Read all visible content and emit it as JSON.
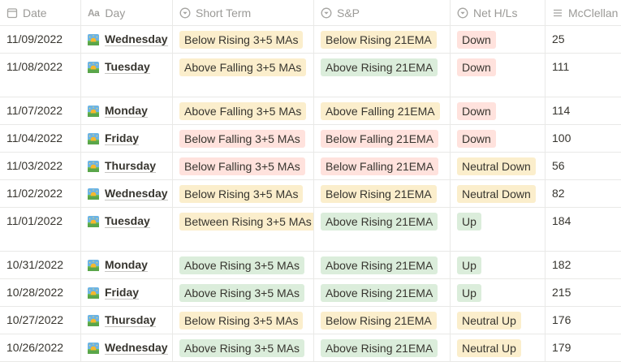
{
  "colors": {
    "yellow_bg": "#fbeecc",
    "green_bg": "#dbeddb",
    "red_bg": "#ffe2dd",
    "tag_text": "#37352f"
  },
  "header": {
    "date": {
      "label": "Date",
      "icon": "calendar-icon"
    },
    "day": {
      "label": "Day",
      "icon": "text-type-icon",
      "icon_text": "Aa"
    },
    "short": {
      "label": "Short Term",
      "icon": "select-icon"
    },
    "sp": {
      "label": "S&P",
      "icon": "select-icon"
    },
    "net": {
      "label": "Net H/Ls",
      "icon": "select-icon"
    },
    "mc": {
      "label": "McClellan",
      "icon": "number-list-icon"
    }
  },
  "rows": [
    {
      "date": "11/09/2022",
      "day": "Wednesday",
      "short": "Below Rising 3+5 MAs",
      "short_color": "yellow",
      "sp": "Below Rising 21EMA",
      "sp_color": "yellow",
      "net": "Down",
      "net_color": "red",
      "mc": "25",
      "tall": false
    },
    {
      "date": "11/08/2022",
      "day": "Tuesday",
      "short": "Above Falling 3+5 MAs",
      "short_color": "yellow",
      "sp": "Above Rising 21EMA",
      "sp_color": "green",
      "net": "Down",
      "net_color": "red",
      "mc": "111",
      "tall": true
    },
    {
      "date": "11/07/2022",
      "day": "Monday",
      "short": "Above Falling 3+5 MAs",
      "short_color": "yellow",
      "sp": "Above Falling 21EMA",
      "sp_color": "yellow",
      "net": "Down",
      "net_color": "red",
      "mc": "114",
      "tall": false
    },
    {
      "date": "11/04/2022",
      "day": "Friday",
      "short": "Below Falling 3+5 MAs",
      "short_color": "red",
      "sp": "Below Falling 21EMA",
      "sp_color": "red",
      "net": "Down",
      "net_color": "red",
      "mc": "100",
      "tall": false
    },
    {
      "date": "11/03/2022",
      "day": "Thursday",
      "short": "Below Falling 3+5 MAs",
      "short_color": "red",
      "sp": "Below Falling 21EMA",
      "sp_color": "red",
      "net": "Neutral Down",
      "net_color": "yellow",
      "mc": "56",
      "tall": false
    },
    {
      "date": "11/02/2022",
      "day": "Wednesday",
      "short": "Below Rising 3+5 MAs",
      "short_color": "yellow",
      "sp": "Below Rising 21EMA",
      "sp_color": "yellow",
      "net": "Neutral Down",
      "net_color": "yellow",
      "mc": "82",
      "tall": false
    },
    {
      "date": "11/01/2022",
      "day": "Tuesday",
      "short": "Between Rising 3+5 MAs",
      "short_color": "yellow",
      "sp": "Above Rising 21EMA",
      "sp_color": "green",
      "net": "Up",
      "net_color": "green",
      "mc": "184",
      "tall": true
    },
    {
      "date": "10/31/2022",
      "day": "Monday",
      "short": "Above Rising 3+5 MAs",
      "short_color": "green",
      "sp": "Above Rising 21EMA",
      "sp_color": "green",
      "net": "Up",
      "net_color": "green",
      "mc": "182",
      "tall": false
    },
    {
      "date": "10/28/2022",
      "day": "Friday",
      "short": "Above Rising 3+5 MAs",
      "short_color": "green",
      "sp": "Above Rising 21EMA",
      "sp_color": "green",
      "net": "Up",
      "net_color": "green",
      "mc": "215",
      "tall": false
    },
    {
      "date": "10/27/2022",
      "day": "Thursday",
      "short": "Below Rising 3+5 MAs",
      "short_color": "yellow",
      "sp": "Below Rising 21EMA",
      "sp_color": "yellow",
      "net": "Neutral Up",
      "net_color": "yellow",
      "mc": "176",
      "tall": false
    },
    {
      "date": "10/26/2022",
      "day": "Wednesday",
      "short": "Above Rising 3+5 MAs",
      "short_color": "green",
      "sp": "Above Rising 21EMA",
      "sp_color": "green",
      "net": "Neutral Up",
      "net_color": "yellow",
      "mc": "179",
      "tall": false
    }
  ]
}
